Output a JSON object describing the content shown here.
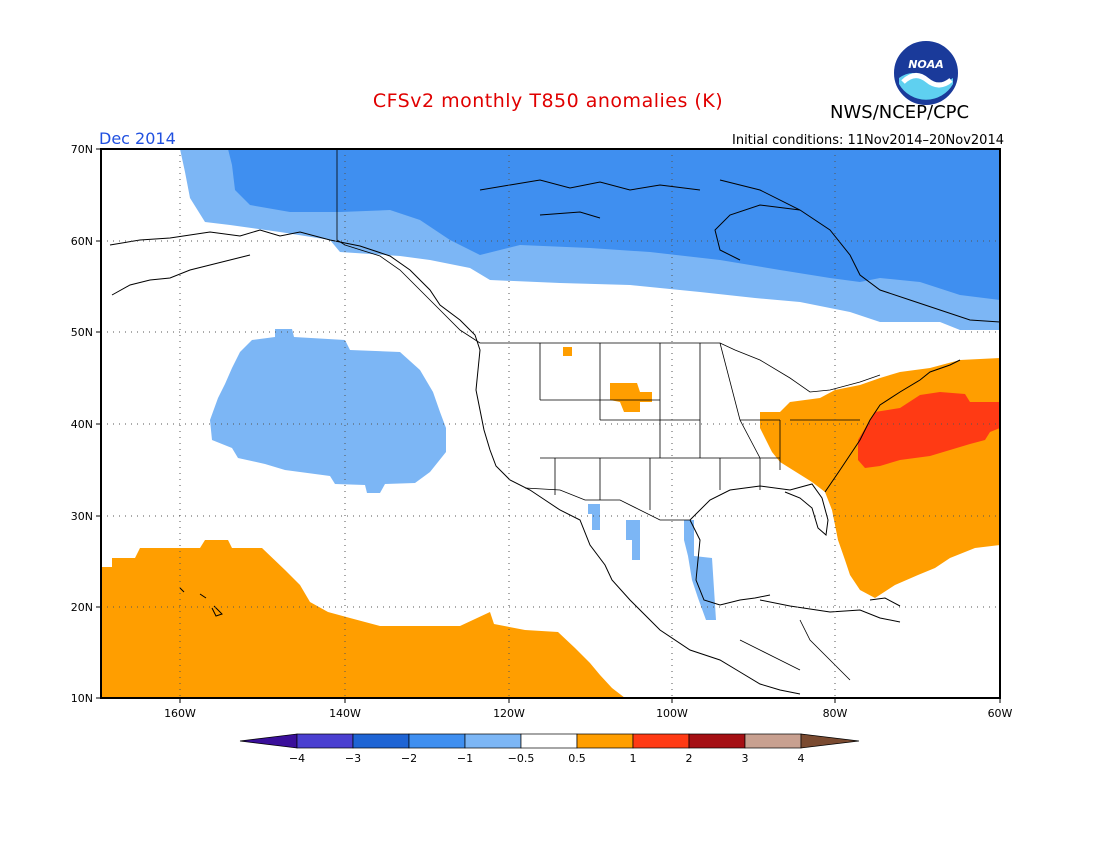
{
  "title": "CFSv2 monthly T850 anomalies (K)",
  "agency": "NWS/NCEP/CPC",
  "period": "Dec 2014",
  "initial_conditions": "Initial conditions: 11Nov2014–20Nov2014",
  "logo_text": "NOAA",
  "lat_labels": [
    "70N",
    "60N",
    "50N",
    "40N",
    "30N",
    "20N",
    "10N"
  ],
  "lon_labels": [
    "160W",
    "140W",
    "120W",
    "100W",
    "80W",
    "60W"
  ],
  "legend": {
    "labels": [
      "−4",
      "−3",
      "−2",
      "−1",
      "−0.5",
      "0.5",
      "1",
      "2",
      "3",
      "4"
    ],
    "colors": [
      "#3a0f9a",
      "#4a3fd0",
      "#1e64d4",
      "#3f8ff0",
      "#7cb6f5",
      "#ffffff",
      "#ff9e00",
      "#ff3a14",
      "#a50f14",
      "#c8a090",
      "#7a4a30"
    ]
  },
  "colors": {
    "title": "#e00000",
    "period": "#2050e0",
    "blue_strong": "#3f8ff0",
    "blue_light": "#7cb6f5",
    "orange": "#ff9e00",
    "red": "#ff3a14"
  }
}
